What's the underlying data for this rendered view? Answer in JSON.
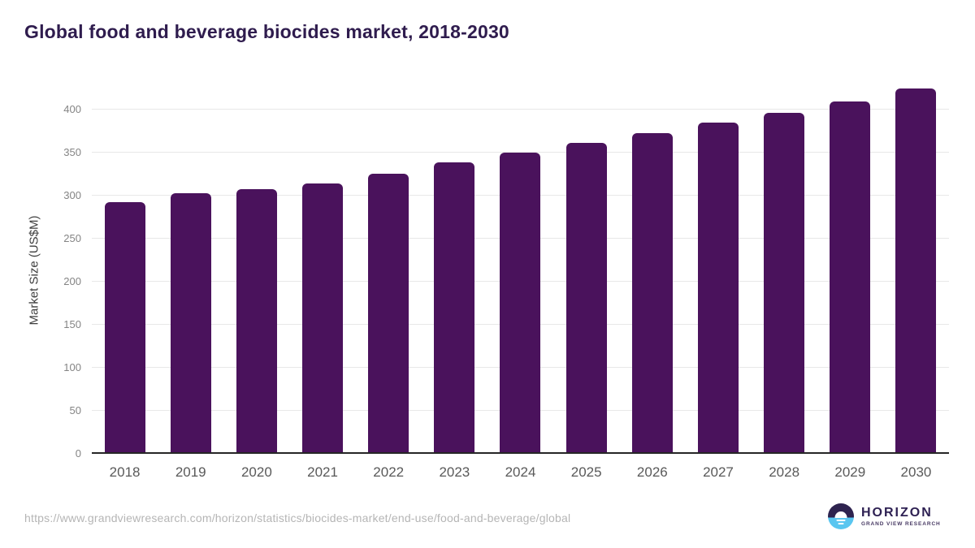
{
  "header": {
    "title": "Global food and beverage biocides market, 2018-2030"
  },
  "chart_data": {
    "type": "bar",
    "title": "Global food and beverage biocides market, 2018-2030",
    "ylabel": "Market Size (US$M)",
    "xlabel": "",
    "categories": [
      "2018",
      "2019",
      "2020",
      "2021",
      "2022",
      "2023",
      "2024",
      "2025",
      "2026",
      "2027",
      "2028",
      "2029",
      "2030"
    ],
    "values": [
      292,
      302,
      307,
      314,
      325,
      338,
      349,
      361,
      372,
      384,
      396,
      409,
      424
    ],
    "yticks": [
      0,
      50,
      100,
      150,
      200,
      250,
      300,
      350,
      400
    ],
    "ylim": [
      0,
      425
    ],
    "grid": "horizontal",
    "legend_position": "none",
    "bar_color": "#4a125c"
  },
  "footer": {
    "source_url": "https://www.grandviewresearch.com/horizon/statistics/biocides-market/end-use/food-and-beverage/global",
    "logo": {
      "name": "HORIZON",
      "subtitle": "GRAND VIEW RESEARCH"
    }
  },
  "colors": {
    "title_text": "#2f1c4e",
    "bar": "#4a125c",
    "gridline": "#e8e8e8",
    "axis_line": "#262626",
    "ytick_text": "#848484",
    "xtick_text": "#595959",
    "ylabel_text": "#3d3d3d",
    "source_text": "#b5b5b5",
    "logo_purple": "#2e234f",
    "logo_blue": "#5ac6f0"
  }
}
